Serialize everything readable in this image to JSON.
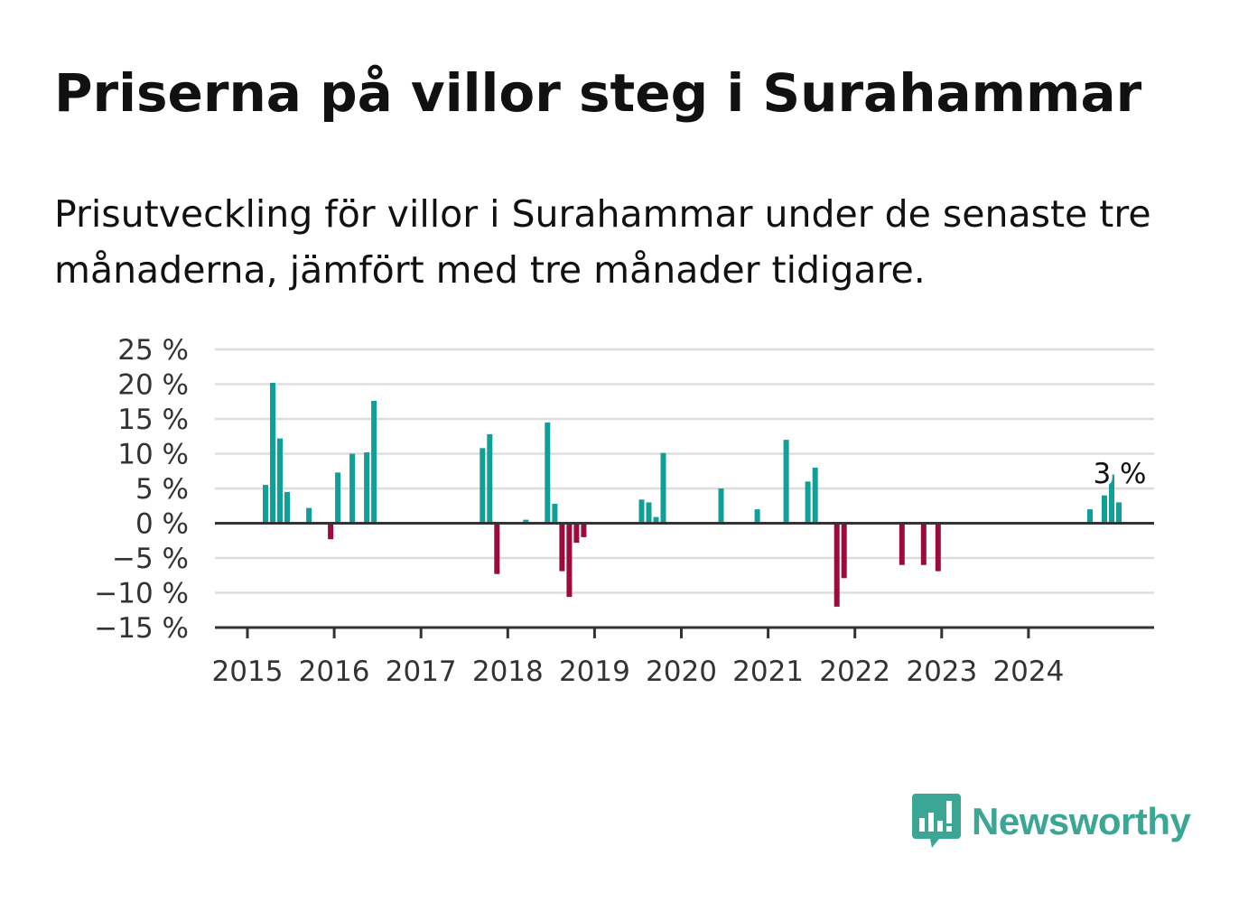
{
  "title": "Priserna på villor steg i Surahammar",
  "subtitle": "Prisutveckling för villor i Surahammar under de senaste tre månaderna, jämfört med tre månader tidigare.",
  "brand": {
    "name": "Newsworthy",
    "color": "#3aa693",
    "icon": "newsworthy-logo-icon"
  },
  "colors": {
    "positive": "#119f9a",
    "negative": "#9b0b3e",
    "grid": "#dddddd",
    "axis": "#333333"
  },
  "chart_data": {
    "type": "bar",
    "title": "Priserna på villor steg i Surahammar",
    "subtitle": "Prisutveckling för villor i Surahammar under de senaste tre månaderna, jämfört med tre månader tidigare.",
    "xlabel": "",
    "ylabel": "",
    "unit": "%",
    "ylim": [
      -15,
      25
    ],
    "yticks": [
      {
        "value": 25,
        "label": "25 %"
      },
      {
        "value": 20,
        "label": "20 %"
      },
      {
        "value": 15,
        "label": "15 %"
      },
      {
        "value": 10,
        "label": "10 %"
      },
      {
        "value": 5,
        "label": "5 %"
      },
      {
        "value": 0,
        "label": "0 %"
      },
      {
        "value": -5,
        "label": "−5 %"
      },
      {
        "value": -10,
        "label": "−10 %"
      },
      {
        "value": -15,
        "label": "−15 %"
      }
    ],
    "xticks": [
      "2015",
      "2016",
      "2017",
      "2018",
      "2019",
      "2020",
      "2021",
      "2022",
      "2023",
      "2024"
    ],
    "grid": true,
    "legend": "none",
    "series": [
      {
        "values": [
          {
            "date": "2015-03",
            "value": 5.5
          },
          {
            "date": "2015-04",
            "value": 20.2
          },
          {
            "date": "2015-05",
            "value": 12.2
          },
          {
            "date": "2015-06",
            "value": 4.5
          },
          {
            "date": "2015-09",
            "value": 2.2
          },
          {
            "date": "2015-12",
            "value": -2.3
          },
          {
            "date": "2016-01",
            "value": 7.3
          },
          {
            "date": "2016-03",
            "value": 10.0
          },
          {
            "date": "2016-05",
            "value": 10.2
          },
          {
            "date": "2016-06",
            "value": 17.6
          },
          {
            "date": "2017-09",
            "value": 10.8
          },
          {
            "date": "2017-10",
            "value": 12.8
          },
          {
            "date": "2017-11",
            "value": -7.3
          },
          {
            "date": "2018-03",
            "value": 0.5
          },
          {
            "date": "2018-06",
            "value": 14.5
          },
          {
            "date": "2018-07",
            "value": 2.8
          },
          {
            "date": "2018-08",
            "value": -6.9
          },
          {
            "date": "2018-09",
            "value": -10.6
          },
          {
            "date": "2018-10",
            "value": -2.8
          },
          {
            "date": "2018-11",
            "value": -2.0
          },
          {
            "date": "2019-07",
            "value": 3.4
          },
          {
            "date": "2019-08",
            "value": 3.0
          },
          {
            "date": "2019-09",
            "value": 0.9
          },
          {
            "date": "2019-10",
            "value": 10.1
          },
          {
            "date": "2020-06",
            "value": 5.0
          },
          {
            "date": "2020-11",
            "value": 2.0
          },
          {
            "date": "2021-03",
            "value": 12.0
          },
          {
            "date": "2021-06",
            "value": 6.0
          },
          {
            "date": "2021-07",
            "value": 8.0
          },
          {
            "date": "2021-10",
            "value": -12.0
          },
          {
            "date": "2021-11",
            "value": -7.9
          },
          {
            "date": "2022-07",
            "value": -6.0
          },
          {
            "date": "2022-10",
            "value": -6.0
          },
          {
            "date": "2022-12",
            "value": -6.9
          },
          {
            "date": "2024-09",
            "value": 2.0
          },
          {
            "date": "2024-11",
            "value": 4.0
          },
          {
            "date": "2024-12",
            "value": 7.0
          },
          {
            "date": "2025-01",
            "value": 3.0
          }
        ]
      }
    ],
    "annotations": [
      {
        "date": "2025-01",
        "value": 3.0,
        "label": "3 %"
      }
    ]
  }
}
